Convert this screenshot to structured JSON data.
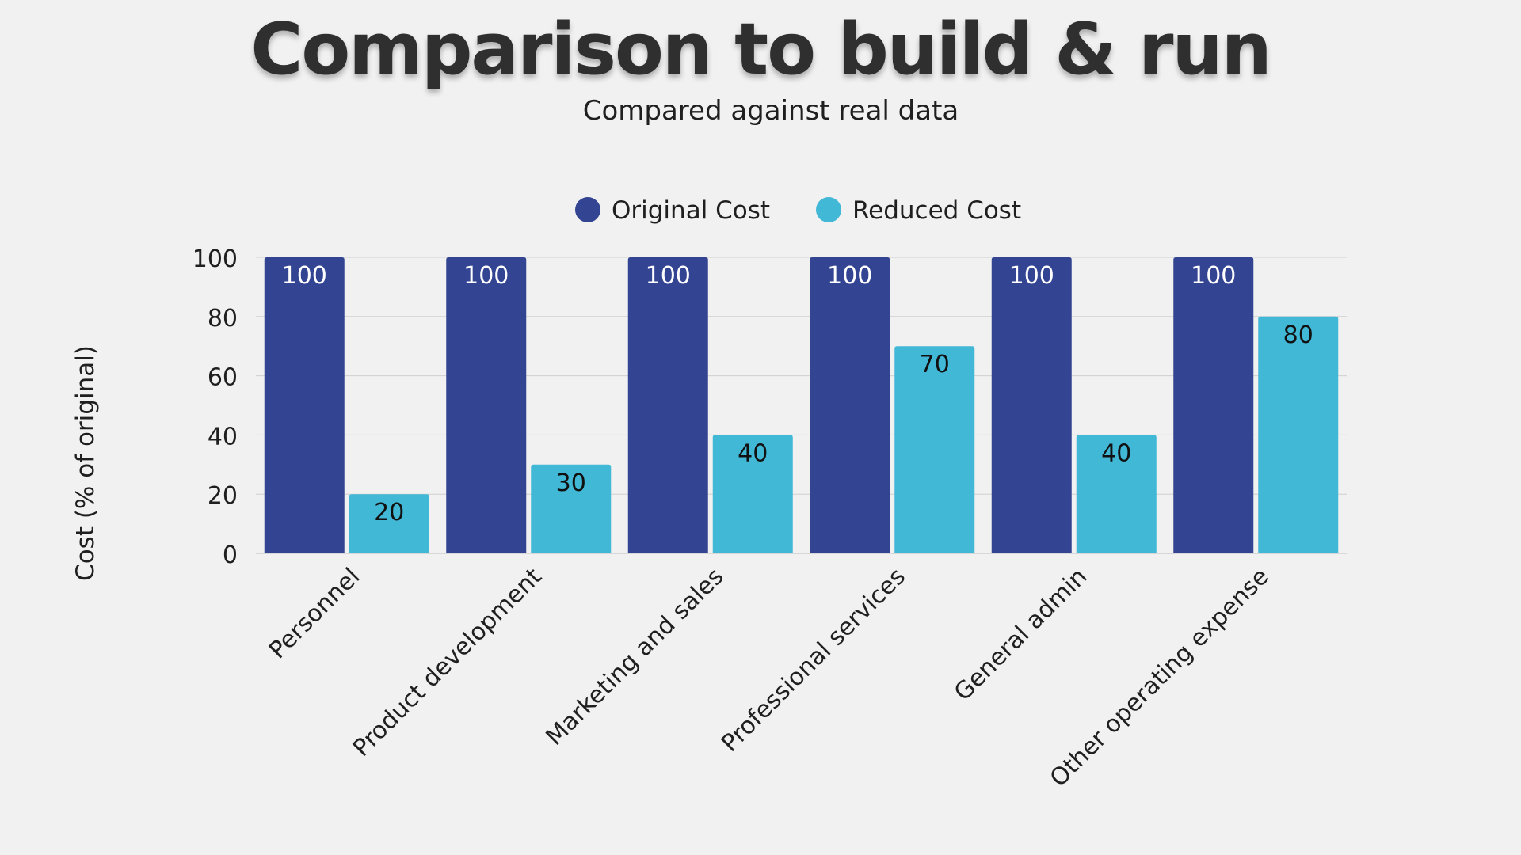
{
  "chart_data": {
    "type": "bar",
    "title": "Comparison to build & run",
    "subtitle": "Compared against real data",
    "ylabel": "Cost (% of original)",
    "xlabel": "",
    "categories": [
      "Personnel",
      "Product development",
      "Marketing and sales",
      "Professional services",
      "General admin",
      "Other operating expense"
    ],
    "series": [
      {
        "name": "Original Cost",
        "color": "#334592",
        "label_color": "#ffffff",
        "values": [
          100,
          100,
          100,
          100,
          100,
          100
        ]
      },
      {
        "name": "Reduced Cost",
        "color": "#42b8d7",
        "label_color": "#111111",
        "values": [
          20,
          30,
          40,
          70,
          40,
          80
        ]
      }
    ],
    "ylim": [
      0,
      100
    ],
    "yticks": [
      0,
      20,
      40,
      60,
      80,
      100
    ],
    "grid": true,
    "legend_position": "top-center",
    "data_labels": true
  }
}
